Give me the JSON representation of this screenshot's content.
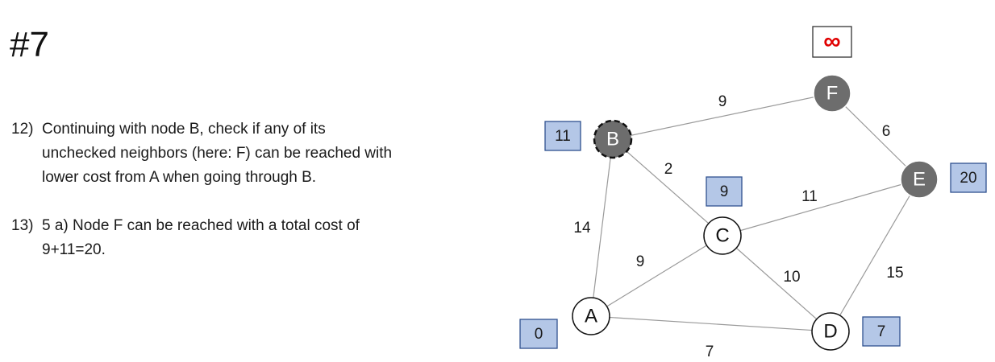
{
  "slide": {
    "title": "#7"
  },
  "steps": [
    {
      "number": "12)",
      "lines": [
        "Continuing with node B, check if any of its",
        "unchecked neighbors (here: F) can be reached with",
        "lower cost from A when going through B."
      ]
    },
    {
      "number": "13)",
      "lines": [
        "5 a) Node F can be reached with a total cost of",
        "9+11=20."
      ]
    }
  ],
  "graph": {
    "nodes": [
      {
        "id": "A",
        "label": "A",
        "state": "unvisited",
        "cost": "0"
      },
      {
        "id": "B",
        "label": "B",
        "state": "current",
        "cost": "11"
      },
      {
        "id": "C",
        "label": "C",
        "state": "unvisited",
        "cost": "9"
      },
      {
        "id": "D",
        "label": "D",
        "state": "unvisited",
        "cost": "7"
      },
      {
        "id": "E",
        "label": "E",
        "state": "checked",
        "cost": "20"
      },
      {
        "id": "F",
        "label": "F",
        "state": "checked",
        "cost": "∞"
      }
    ],
    "edges": [
      {
        "from": "B",
        "to": "F",
        "weight": "9"
      },
      {
        "from": "F",
        "to": "E",
        "weight": "6"
      },
      {
        "from": "B",
        "to": "C",
        "weight": "2"
      },
      {
        "from": "C",
        "to": "E",
        "weight": "11"
      },
      {
        "from": "A",
        "to": "B",
        "weight": "14"
      },
      {
        "from": "A",
        "to": "C",
        "weight": "9"
      },
      {
        "from": "C",
        "to": "D",
        "weight": "10"
      },
      {
        "from": "E",
        "to": "D",
        "weight": "15"
      },
      {
        "from": "A",
        "to": "D",
        "weight": "7"
      }
    ],
    "colors": {
      "cost_box_fill": "#b4c7e7",
      "cost_box_stroke": "#2f528f",
      "checked_node_fill": "#6d6d6d",
      "infinity_color": "#e00000"
    }
  }
}
